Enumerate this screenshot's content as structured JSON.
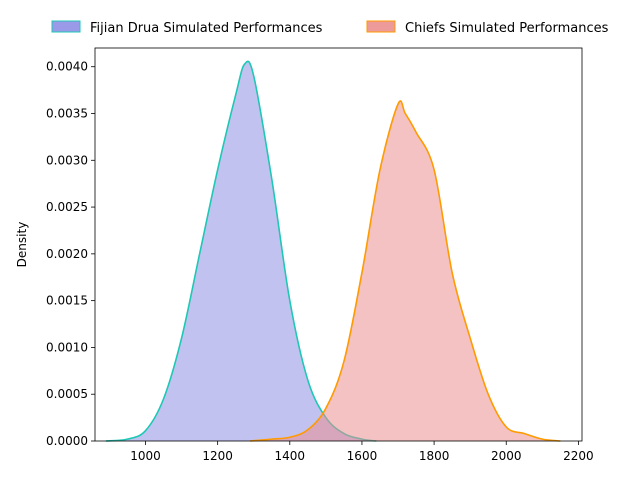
{
  "chart_data": {
    "type": "area",
    "kind": "kde",
    "xlabel": "",
    "ylabel": "Density",
    "xlim": [
      860,
      2210
    ],
    "ylim": [
      0,
      0.0042
    ],
    "xticks": [
      1000,
      1200,
      1400,
      1600,
      1800,
      2000,
      2200
    ],
    "xtick_labels": [
      "1000",
      "1200",
      "1400",
      "1600",
      "1800",
      "2000",
      "2200"
    ],
    "yticks": [
      0,
      0.0005,
      0.001,
      0.0015,
      0.002,
      0.0025,
      0.003,
      0.0035,
      0.004
    ],
    "ytick_labels": [
      "0.0000",
      "0.0005",
      "0.0010",
      "0.0015",
      "0.0020",
      "0.0025",
      "0.0030",
      "0.0035",
      "0.0040"
    ],
    "grid": false,
    "legend_position": "top",
    "series": [
      {
        "name": "Fijian Drua Simulated Performances",
        "fill": "#8f8fe6",
        "line": "#1ec8b4",
        "x": [
          890,
          950,
          1000,
          1050,
          1100,
          1150,
          1200,
          1250,
          1275,
          1300,
          1350,
          1400,
          1450,
          1500,
          1550,
          1600,
          1640
        ],
        "y": [
          0,
          2e-05,
          0.00011,
          0.00045,
          0.0011,
          0.002,
          0.0029,
          0.0037,
          0.00403,
          0.0039,
          0.0028,
          0.0015,
          0.00065,
          0.00025,
          8e-05,
          2e-05,
          0
        ]
      },
      {
        "name": "Chiefs Simulated Performances",
        "fill": "#eb8f8f",
        "line": "#ff9a00",
        "x": [
          1290,
          1350,
          1400,
          1450,
          1500,
          1550,
          1600,
          1650,
          1700,
          1720,
          1750,
          1800,
          1850,
          1900,
          1950,
          2000,
          2050,
          2100,
          2150
        ],
        "y": [
          0,
          2e-05,
          4e-05,
          0.00012,
          0.00035,
          0.00085,
          0.0018,
          0.0029,
          0.0036,
          0.0035,
          0.0033,
          0.0029,
          0.0018,
          0.0011,
          0.0005,
          0.00015,
          8e-05,
          2e-05,
          0
        ]
      }
    ]
  }
}
